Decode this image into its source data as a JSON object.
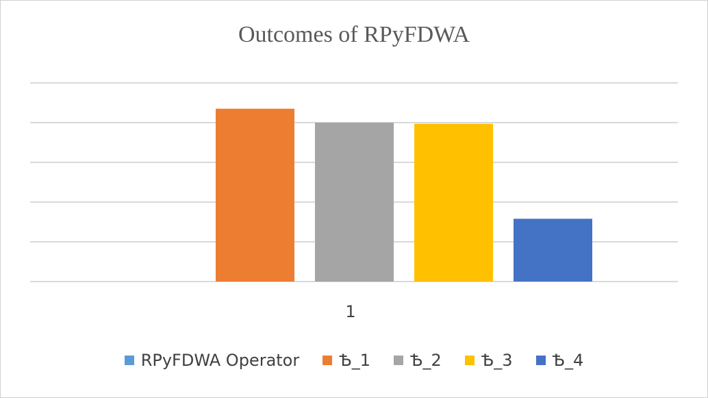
{
  "chart_data": {
    "type": "bar",
    "title": "Outcomes of RPyFDWA",
    "categories": [
      "1"
    ],
    "series": [
      {
        "name": "RPyFDWA Operator",
        "values": [
          0
        ],
        "color": "#5B9BD5"
      },
      {
        "name": "Ѣ_1",
        "values": [
          4.35
        ],
        "color": "#ED7D31"
      },
      {
        "name": "Ѣ_2",
        "values": [
          4.0
        ],
        "color": "#A5A5A5"
      },
      {
        "name": "Ѣ_3",
        "values": [
          3.97
        ],
        "color": "#FFC000"
      },
      {
        "name": "Ѣ_4",
        "values": [
          1.58
        ],
        "color": "#4472C4"
      }
    ],
    "ylim": [
      0,
      5
    ],
    "grid": true,
    "legend_position": "bottom"
  }
}
